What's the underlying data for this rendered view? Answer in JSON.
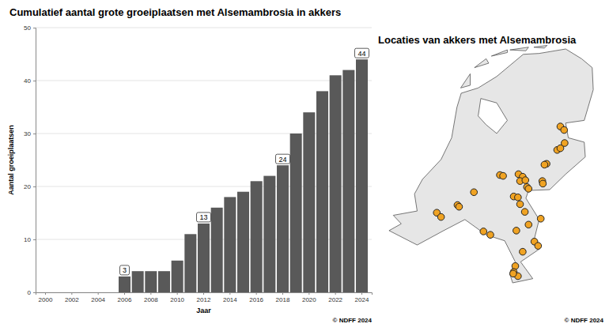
{
  "chart_data": [
    {
      "type": "bar",
      "title": "Cumulatief aantal grote groeiplaatsen met Alsemambrosia in akkers",
      "ylabel": "Aantal groeiplaatsen",
      "xlabel": "Jaar",
      "caption": "© NDFF 2024",
      "categories": [
        "2000",
        null,
        "2002",
        null,
        "2004",
        null,
        "2006",
        null,
        "2008",
        null,
        "2010",
        null,
        "2012",
        null,
        "2014",
        null,
        "2016",
        null,
        "2018",
        null,
        "2020",
        null,
        "2022",
        null,
        "2024"
      ],
      "values": [
        0,
        0,
        0,
        0,
        0,
        0,
        3,
        4,
        4,
        4,
        6,
        11,
        13,
        16,
        18,
        19,
        21,
        22,
        24,
        30,
        34,
        38,
        41,
        42,
        44
      ],
      "value_labels": [
        null,
        null,
        null,
        null,
        null,
        null,
        "3",
        null,
        null,
        null,
        null,
        null,
        "13",
        null,
        null,
        null,
        null,
        null,
        "24",
        null,
        null,
        null,
        null,
        null,
        "44"
      ],
      "data_labels": true,
      "color": "#595959",
      "ylim": [
        0,
        50
      ],
      "yticks": [
        0,
        10,
        20,
        30,
        40,
        50
      ],
      "grid": true
    },
    {
      "type": "map",
      "title": "Locaties van akkers met Alsemambrosia",
      "caption": "© NDFF 2024",
      "x": [
        6.6,
        6.67,
        6.68,
        6.54,
        6.6,
        6.34,
        6.3,
        5.46,
        5.52,
        5.81,
        5.89,
        5.84,
        5.94,
        5.97,
        6.0,
        6.26,
        6.27,
        4.97,
        5.72,
        5.8,
        4.66,
        4.69,
        4.27,
        4.35,
        5.84,
        5.93,
        6.0,
        6.23,
        5.77,
        5.15,
        5.28,
        6.11,
        6.18,
        5.89,
        5.75,
        5.72,
        5.8,
        5.71
      ],
      "y": [
        52.58,
        52.54,
        52.39,
        52.31,
        52.33,
        52.15,
        52.14,
        52.02,
        52.01,
        52.03,
        52.0,
        51.95,
        51.96,
        51.88,
        51.86,
        51.95,
        51.92,
        51.82,
        51.77,
        51.76,
        51.67,
        51.65,
        51.58,
        51.53,
        51.68,
        51.59,
        51.44,
        51.51,
        51.37,
        51.36,
        51.32,
        51.24,
        51.19,
        51.12,
        50.95,
        50.88,
        50.83,
        50.86
      ],
      "color": "#f0a323",
      "marker": "circle",
      "tick_labels": false
    }
  ]
}
